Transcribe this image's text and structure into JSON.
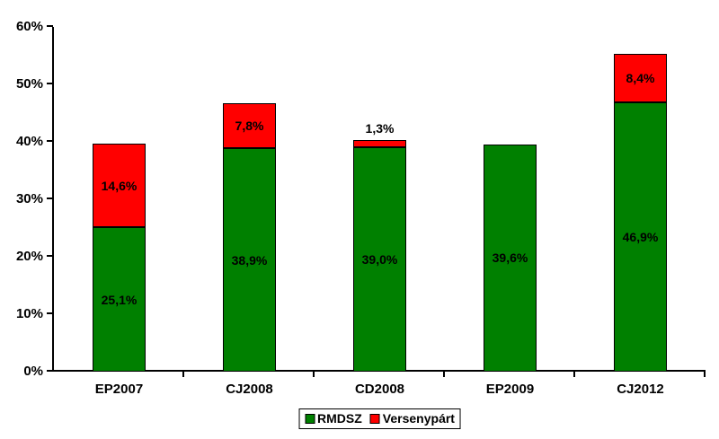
{
  "chart_data": {
    "type": "bar",
    "stacked": true,
    "title": "",
    "xlabel": "",
    "ylabel": "",
    "categories": [
      "EP2007",
      "CJ2008",
      "CD2008",
      "EP2009",
      "CJ2012"
    ],
    "series": [
      {
        "name": "RMDSZ",
        "color": "#008000",
        "values": [
          25.1,
          38.9,
          39.0,
          39.6,
          46.9
        ],
        "labels": [
          "25,1%",
          "38,9%",
          "39,0%",
          "39,6%",
          "46,9%"
        ]
      },
      {
        "name": "Versenypárt",
        "color": "#FF0000",
        "values": [
          14.6,
          7.8,
          1.3,
          0,
          8.4
        ],
        "labels": [
          "14,6%",
          "7,8%",
          "1,3%",
          "",
          "8,4%"
        ]
      }
    ],
    "totals": [
      39.7,
      46.7,
      40.3,
      39.6,
      55.3
    ],
    "ylim": [
      0,
      60
    ],
    "y_tick_labels": [
      "0%",
      "10%",
      "20%",
      "30%",
      "40%",
      "50%",
      "60%"
    ],
    "grid": false,
    "legend_position": "bottom",
    "background_color": "#FFFFFF",
    "axis_color": "#000000",
    "bar_border_color": "#000000",
    "label_color": "#000000"
  }
}
